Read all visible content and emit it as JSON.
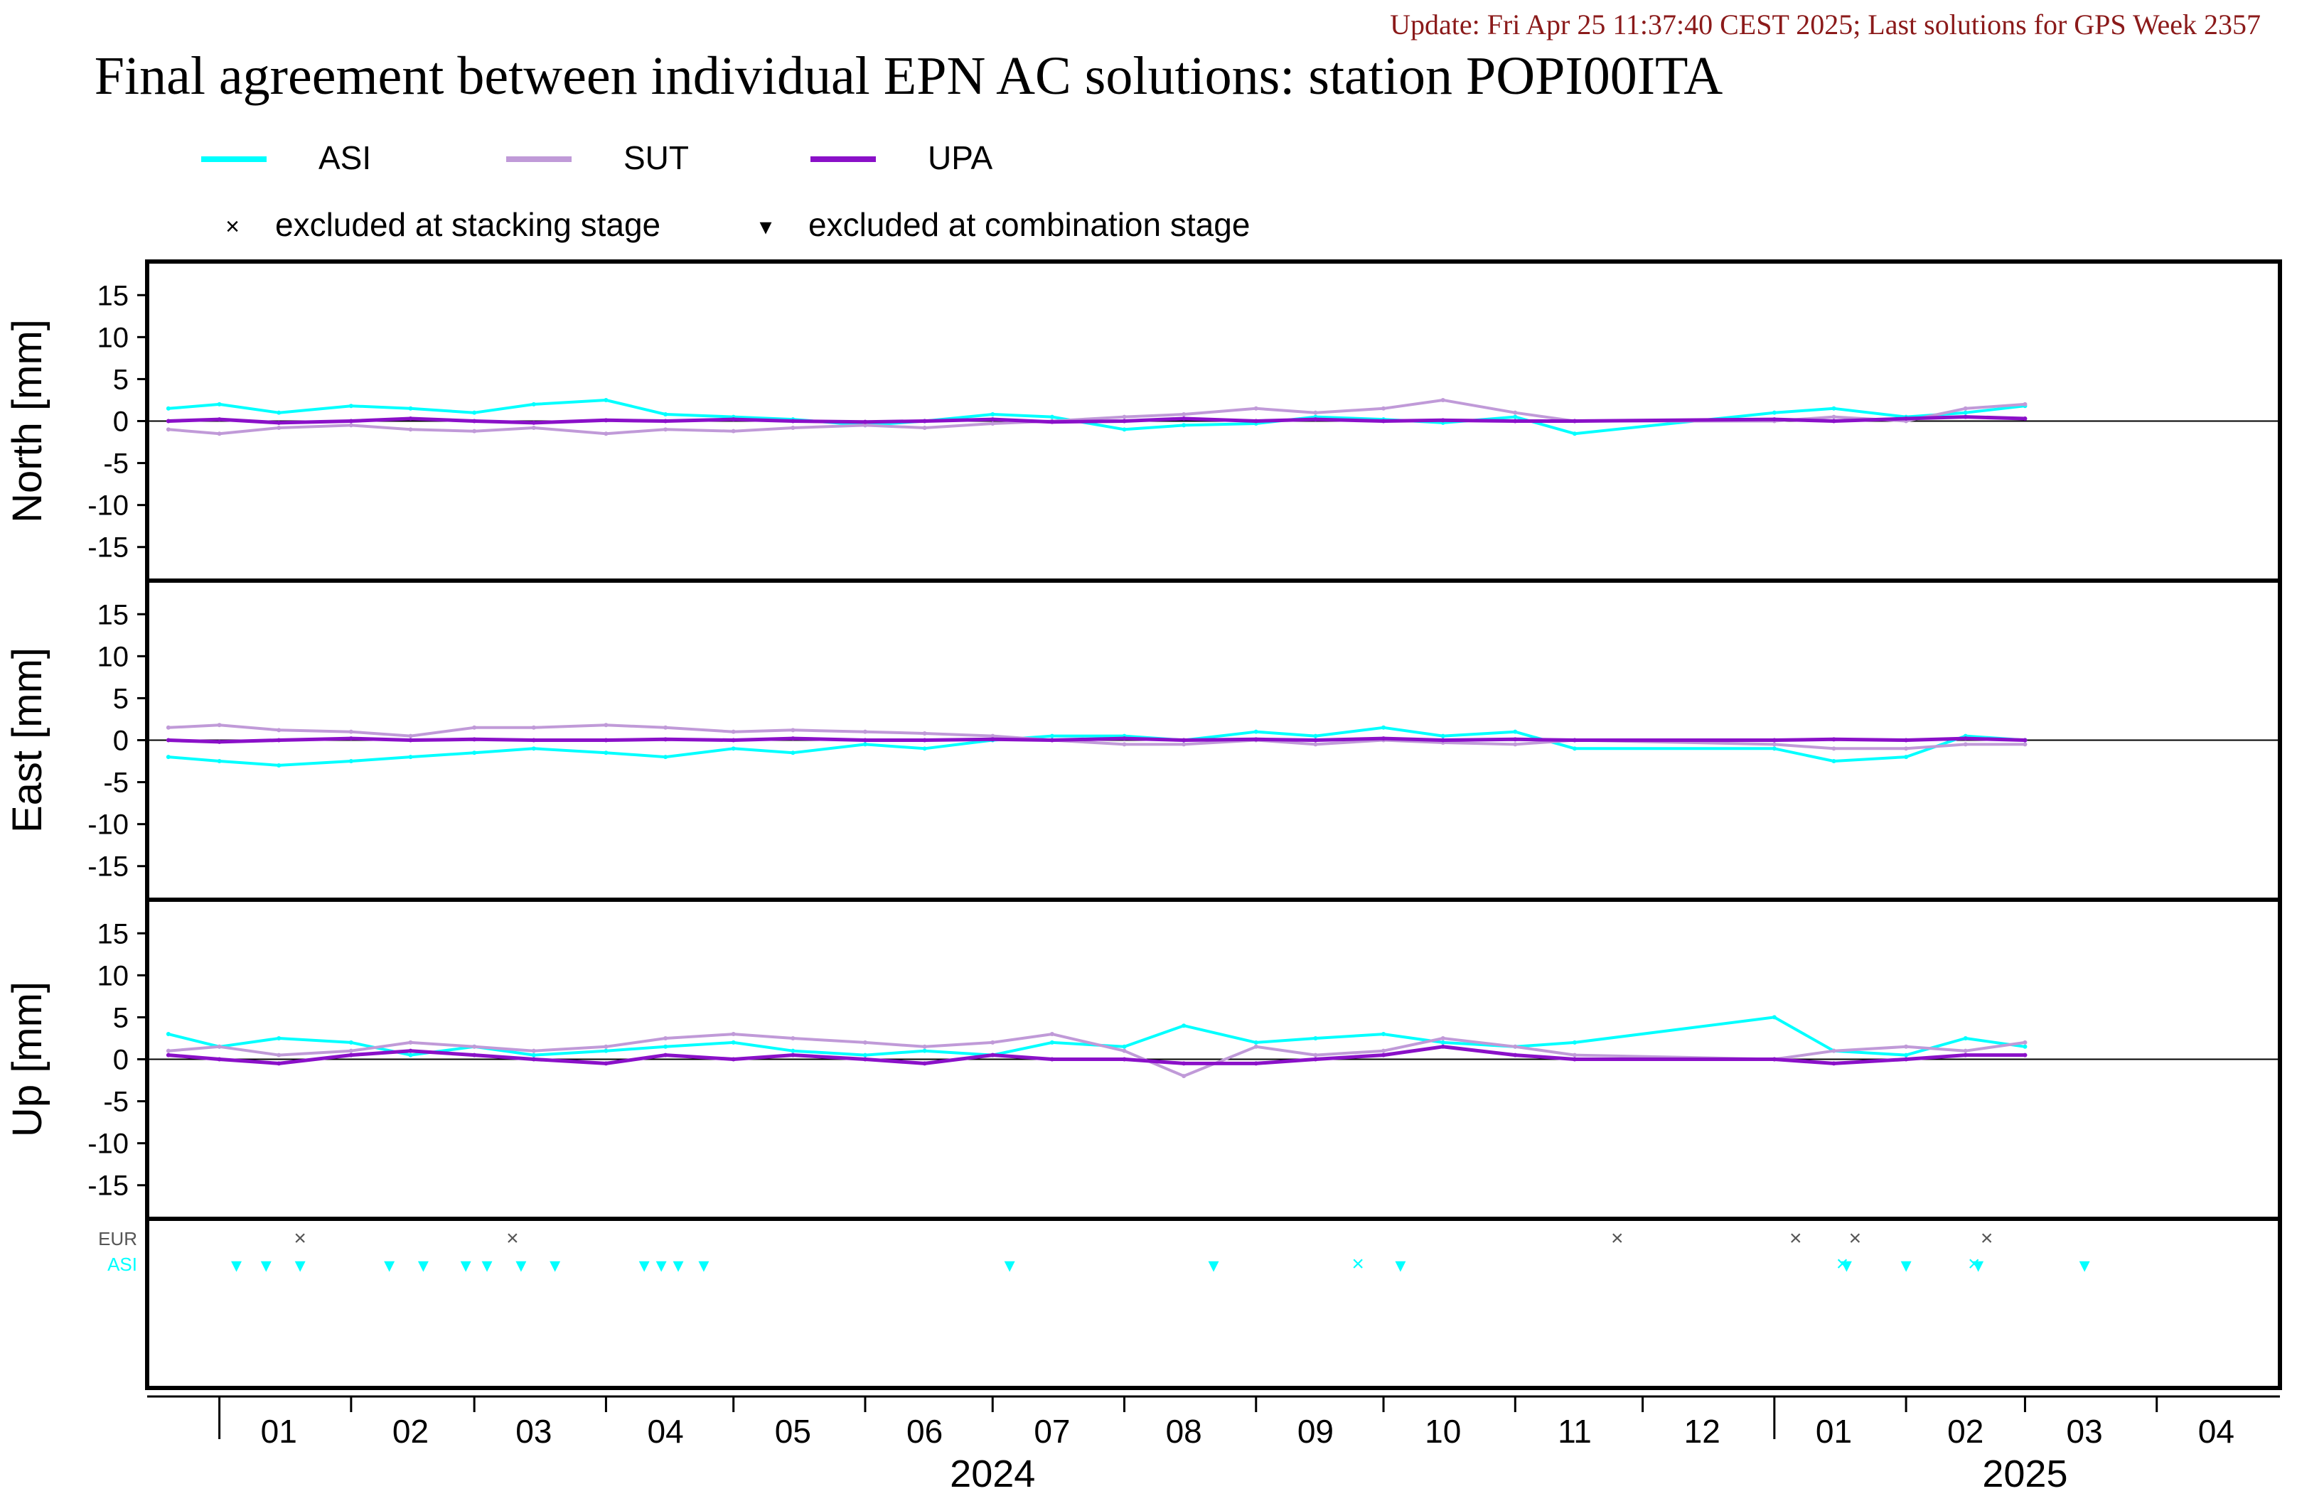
{
  "header": {
    "update_text": "Update: Fri Apr 25 11:37:40 CEST 2025; Last solutions for GPS Week 2357",
    "title": "Final agreement between individual EPN AC solutions: station POPI00ITA"
  },
  "legend": {
    "series": [
      {
        "name": "ASI",
        "color": "#00ffff"
      },
      {
        "name": "SUT",
        "color": "#c09ad8"
      },
      {
        "name": "UPA",
        "color": "#8a10c8"
      }
    ],
    "markers": [
      {
        "symbol": "×",
        "label": "excluded at stacking stage"
      },
      {
        "symbol": "▾",
        "label": "excluded at combination stage"
      }
    ]
  },
  "chart_data": {
    "type": "line",
    "x_axis": {
      "range": [
        "2023-12-15",
        "2025-04-30"
      ],
      "month_ticks": [
        "01",
        "02",
        "03",
        "04",
        "05",
        "06",
        "07",
        "08",
        "09",
        "10",
        "11",
        "12",
        "01",
        "02",
        "03",
        "04"
      ],
      "year_labels": [
        "2024",
        "2025"
      ]
    },
    "panels": [
      {
        "ylabel": "North [mm]",
        "ylim": [
          -19,
          19
        ],
        "yticks": [
          15,
          10,
          5,
          0,
          -5,
          -10,
          -15
        ],
        "series": [
          {
            "name": "ASI",
            "x": [
              "2023-12-20",
              "2024-01-01",
              "2024-01-15",
              "2024-02-01",
              "2024-02-15",
              "2024-03-01",
              "2024-03-15",
              "2024-04-01",
              "2024-04-15",
              "2024-05-01",
              "2024-05-15",
              "2024-06-01",
              "2024-06-15",
              "2024-07-01",
              "2024-07-15",
              "2024-08-01",
              "2024-08-15",
              "2024-09-01",
              "2024-09-15",
              "2024-10-01",
              "2024-10-15",
              "2024-11-01",
              "2024-11-15",
              "2025-01-01",
              "2025-01-15",
              "2025-02-01",
              "2025-02-15",
              "2025-03-01"
            ],
            "y": [
              1.5,
              2.0,
              1.0,
              1.8,
              1.5,
              1.0,
              2.0,
              2.5,
              0.8,
              0.5,
              0.2,
              -0.5,
              0.0,
              0.8,
              0.5,
              -1.0,
              -0.5,
              -0.3,
              0.5,
              0.2,
              -0.2,
              0.5,
              -1.5,
              1.0,
              1.5,
              0.5,
              1.0,
              1.8
            ]
          },
          {
            "name": "SUT",
            "x": [
              "2023-12-20",
              "2024-01-01",
              "2024-01-15",
              "2024-02-01",
              "2024-02-15",
              "2024-03-01",
              "2024-03-15",
              "2024-04-01",
              "2024-04-15",
              "2024-05-01",
              "2024-05-15",
              "2024-06-01",
              "2024-06-15",
              "2024-07-01",
              "2024-07-15",
              "2024-08-01",
              "2024-08-15",
              "2024-09-01",
              "2024-09-15",
              "2024-10-01",
              "2024-10-15",
              "2024-11-01",
              "2024-11-15",
              "2025-01-01",
              "2025-01-15",
              "2025-02-01",
              "2025-02-15",
              "2025-03-01"
            ],
            "y": [
              -1.0,
              -1.5,
              -0.8,
              -0.5,
              -1.0,
              -1.2,
              -0.8,
              -1.5,
              -1.0,
              -1.2,
              -0.8,
              -0.5,
              -0.8,
              -0.3,
              0.0,
              0.5,
              0.8,
              1.5,
              1.0,
              1.5,
              2.5,
              1.0,
              0.0,
              0.0,
              0.5,
              0.0,
              1.5,
              2.0
            ]
          },
          {
            "name": "UPA",
            "x": [
              "2023-12-20",
              "2024-01-01",
              "2024-01-15",
              "2024-02-01",
              "2024-02-15",
              "2024-03-01",
              "2024-03-15",
              "2024-04-01",
              "2024-04-15",
              "2024-05-01",
              "2024-05-15",
              "2024-06-01",
              "2024-06-15",
              "2024-07-01",
              "2024-07-15",
              "2024-08-01",
              "2024-08-15",
              "2024-09-01",
              "2024-09-15",
              "2024-10-01",
              "2024-10-15",
              "2024-11-01",
              "2024-11-15",
              "2025-01-01",
              "2025-01-15",
              "2025-02-01",
              "2025-02-15",
              "2025-03-01"
            ],
            "y": [
              0.0,
              0.2,
              -0.2,
              0.0,
              0.3,
              0.0,
              -0.2,
              0.1,
              0.0,
              0.2,
              0.0,
              -0.1,
              0.0,
              0.2,
              -0.1,
              0.0,
              0.3,
              0.0,
              0.2,
              0.0,
              0.1,
              0.0,
              0.0,
              0.2,
              0.0,
              0.3,
              0.5,
              0.3
            ]
          }
        ]
      },
      {
        "ylabel": "East [mm]",
        "ylim": [
          -19,
          19
        ],
        "yticks": [
          15,
          10,
          5,
          0,
          -5,
          -10,
          -15
        ],
        "series": [
          {
            "name": "ASI",
            "x": [
              "2023-12-20",
              "2024-01-01",
              "2024-01-15",
              "2024-02-01",
              "2024-02-15",
              "2024-03-01",
              "2024-03-15",
              "2024-04-01",
              "2024-04-15",
              "2024-05-01",
              "2024-05-15",
              "2024-06-01",
              "2024-06-15",
              "2024-07-01",
              "2024-07-15",
              "2024-08-01",
              "2024-08-15",
              "2024-09-01",
              "2024-09-15",
              "2024-10-01",
              "2024-10-15",
              "2024-11-01",
              "2024-11-15",
              "2025-01-01",
              "2025-01-15",
              "2025-02-01",
              "2025-02-15",
              "2025-03-01"
            ],
            "y": [
              -2.0,
              -2.5,
              -3.0,
              -2.5,
              -2.0,
              -1.5,
              -1.0,
              -1.5,
              -2.0,
              -1.0,
              -1.5,
              -0.5,
              -1.0,
              0.0,
              0.5,
              0.5,
              0.0,
              1.0,
              0.5,
              1.5,
              0.5,
              1.0,
              -1.0,
              -1.0,
              -2.5,
              -2.0,
              0.5,
              0.0
            ]
          },
          {
            "name": "SUT",
            "x": [
              "2023-12-20",
              "2024-01-01",
              "2024-01-15",
              "2024-02-01",
              "2024-02-15",
              "2024-03-01",
              "2024-03-15",
              "2024-04-01",
              "2024-04-15",
              "2024-05-01",
              "2024-05-15",
              "2024-06-01",
              "2024-06-15",
              "2024-07-01",
              "2024-07-15",
              "2024-08-01",
              "2024-08-15",
              "2024-09-01",
              "2024-09-15",
              "2024-10-01",
              "2024-10-15",
              "2024-11-01",
              "2024-11-15",
              "2025-01-01",
              "2025-01-15",
              "2025-02-01",
              "2025-02-15",
              "2025-03-01"
            ],
            "y": [
              1.5,
              1.8,
              1.2,
              1.0,
              0.5,
              1.5,
              1.5,
              1.8,
              1.5,
              1.0,
              1.2,
              1.0,
              0.8,
              0.5,
              0.0,
              -0.5,
              -0.5,
              0.0,
              -0.5,
              0.0,
              -0.3,
              -0.5,
              0.0,
              -0.5,
              -1.0,
              -1.0,
              -0.5,
              -0.5
            ]
          },
          {
            "name": "UPA",
            "x": [
              "2023-12-20",
              "2024-01-01",
              "2024-01-15",
              "2024-02-01",
              "2024-02-15",
              "2024-03-01",
              "2024-03-15",
              "2024-04-01",
              "2024-04-15",
              "2024-05-01",
              "2024-05-15",
              "2024-06-01",
              "2024-06-15",
              "2024-07-01",
              "2024-07-15",
              "2024-08-01",
              "2024-08-15",
              "2024-09-01",
              "2024-09-15",
              "2024-10-01",
              "2024-10-15",
              "2024-11-01",
              "2024-11-15",
              "2025-01-01",
              "2025-01-15",
              "2025-02-01",
              "2025-02-15",
              "2025-03-01"
            ],
            "y": [
              0.0,
              -0.2,
              0.0,
              0.2,
              0.0,
              0.1,
              0.0,
              0.0,
              0.1,
              0.0,
              0.2,
              0.0,
              0.0,
              0.1,
              0.0,
              0.2,
              0.0,
              0.1,
              0.0,
              0.2,
              0.0,
              0.1,
              0.0,
              0.0,
              0.1,
              0.0,
              0.2,
              0.0
            ]
          }
        ]
      },
      {
        "ylabel": "Up [mm]",
        "ylim": [
          -19,
          19
        ],
        "yticks": [
          15,
          10,
          5,
          0,
          -5,
          -10,
          -15
        ],
        "series": [
          {
            "name": "ASI",
            "x": [
              "2023-12-20",
              "2024-01-01",
              "2024-01-15",
              "2024-02-01",
              "2024-02-15",
              "2024-03-01",
              "2024-03-15",
              "2024-04-01",
              "2024-04-15",
              "2024-05-01",
              "2024-05-15",
              "2024-06-01",
              "2024-06-15",
              "2024-07-01",
              "2024-07-15",
              "2024-08-01",
              "2024-08-15",
              "2024-09-01",
              "2024-09-15",
              "2024-10-01",
              "2024-10-15",
              "2024-11-01",
              "2024-11-15",
              "2025-01-01",
              "2025-01-15",
              "2025-02-01",
              "2025-02-15",
              "2025-03-01"
            ],
            "y": [
              3.0,
              1.5,
              2.5,
              2.0,
              0.5,
              1.5,
              0.5,
              1.0,
              1.5,
              2.0,
              1.0,
              0.5,
              1.0,
              0.5,
              2.0,
              1.5,
              4.0,
              2.0,
              2.5,
              3.0,
              2.0,
              1.5,
              2.0,
              5.0,
              1.0,
              0.5,
              2.5,
              1.5
            ]
          },
          {
            "name": "SUT",
            "x": [
              "2023-12-20",
              "2024-01-01",
              "2024-01-15",
              "2024-02-01",
              "2024-02-15",
              "2024-03-01",
              "2024-03-15",
              "2024-04-01",
              "2024-04-15",
              "2024-05-01",
              "2024-05-15",
              "2024-06-01",
              "2024-06-15",
              "2024-07-01",
              "2024-07-15",
              "2024-08-01",
              "2024-08-15",
              "2024-09-01",
              "2024-09-15",
              "2024-10-01",
              "2024-10-15",
              "2024-11-01",
              "2024-11-15",
              "2025-01-01",
              "2025-01-15",
              "2025-02-01",
              "2025-02-15",
              "2025-03-01"
            ],
            "y": [
              1.0,
              1.5,
              0.5,
              1.0,
              2.0,
              1.5,
              1.0,
              1.5,
              2.5,
              3.0,
              2.5,
              2.0,
              1.5,
              2.0,
              3.0,
              1.0,
              -2.0,
              1.5,
              0.5,
              1.0,
              2.5,
              1.5,
              0.5,
              0.0,
              1.0,
              1.5,
              1.0,
              2.0
            ]
          },
          {
            "name": "UPA",
            "x": [
              "2023-12-20",
              "2024-01-01",
              "2024-01-15",
              "2024-02-01",
              "2024-02-15",
              "2024-03-01",
              "2024-03-15",
              "2024-04-01",
              "2024-04-15",
              "2024-05-01",
              "2024-05-15",
              "2024-06-01",
              "2024-06-15",
              "2024-07-01",
              "2024-07-15",
              "2024-08-01",
              "2024-08-15",
              "2024-09-01",
              "2024-09-15",
              "2024-10-01",
              "2024-10-15",
              "2024-11-01",
              "2024-11-15",
              "2025-01-01",
              "2025-01-15",
              "2025-02-01",
              "2025-02-15",
              "2025-03-01"
            ],
            "y": [
              0.5,
              0.0,
              -0.5,
              0.5,
              1.0,
              0.5,
              0.0,
              -0.5,
              0.5,
              0.0,
              0.5,
              0.0,
              -0.5,
              0.5,
              0.0,
              0.0,
              -0.5,
              -0.5,
              0.0,
              0.5,
              1.5,
              0.5,
              0.0,
              0.0,
              -0.5,
              0.0,
              0.5,
              0.5
            ]
          }
        ]
      }
    ],
    "exclusion_panel": {
      "rows": [
        {
          "name": "EUR",
          "color": "#555555",
          "stacking": [
            "2024-01-20",
            "2024-03-10",
            "2024-11-25",
            "2025-01-06",
            "2025-01-20",
            "2025-02-20"
          ],
          "combination": []
        },
        {
          "name": "ASI",
          "color": "#00ffff",
          "stacking": [
            "2024-09-25",
            "2025-01-17",
            "2025-02-17"
          ],
          "combination": [
            "2024-01-05",
            "2024-01-12",
            "2024-01-20",
            "2024-02-10",
            "2024-02-18",
            "2024-02-28",
            "2024-03-04",
            "2024-03-12",
            "2024-03-20",
            "2024-04-10",
            "2024-04-14",
            "2024-04-18",
            "2024-04-24",
            "2024-07-05",
            "2024-08-22",
            "2024-10-05",
            "2025-01-18",
            "2025-02-01",
            "2025-02-18",
            "2025-03-15"
          ]
        }
      ]
    }
  }
}
